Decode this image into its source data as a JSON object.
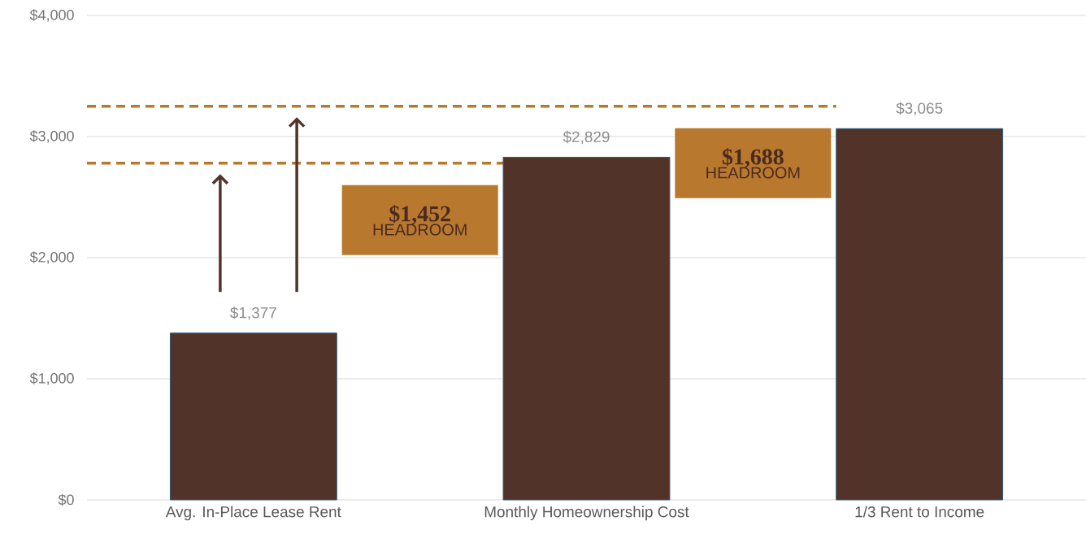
{
  "chart_data": {
    "type": "bar",
    "categories": [
      "Avg. In-Place Lease Rent",
      "Monthly Homeownership Cost",
      "1/3 Rent to Income"
    ],
    "values": [
      1377,
      2829,
      3065
    ],
    "color": "#523329",
    "value_labels": [
      "$1,377",
      "$2,829",
      "$3,065"
    ],
    "ylim": [
      0,
      4000
    ],
    "yticks": [
      {
        "value": 0,
        "label": "$0"
      },
      {
        "value": 1000,
        "label": "$1,000"
      },
      {
        "value": 2000,
        "label": "$2,000"
      },
      {
        "value": 3000,
        "label": "$3,000"
      },
      {
        "value": 4000,
        "label": "$4,000"
      }
    ],
    "grid": "y",
    "ref_lines": [
      {
        "axis": "y",
        "value": 2780,
        "color": "#b8782e",
        "line_style": "dashed"
      },
      {
        "axis": "y",
        "value": 3250,
        "color": "#b8782e",
        "line_style": "dashed"
      }
    ],
    "annotations": [
      "$1,452",
      "HEADROOM",
      "$1,688",
      "HEADROOM"
    ]
  }
}
